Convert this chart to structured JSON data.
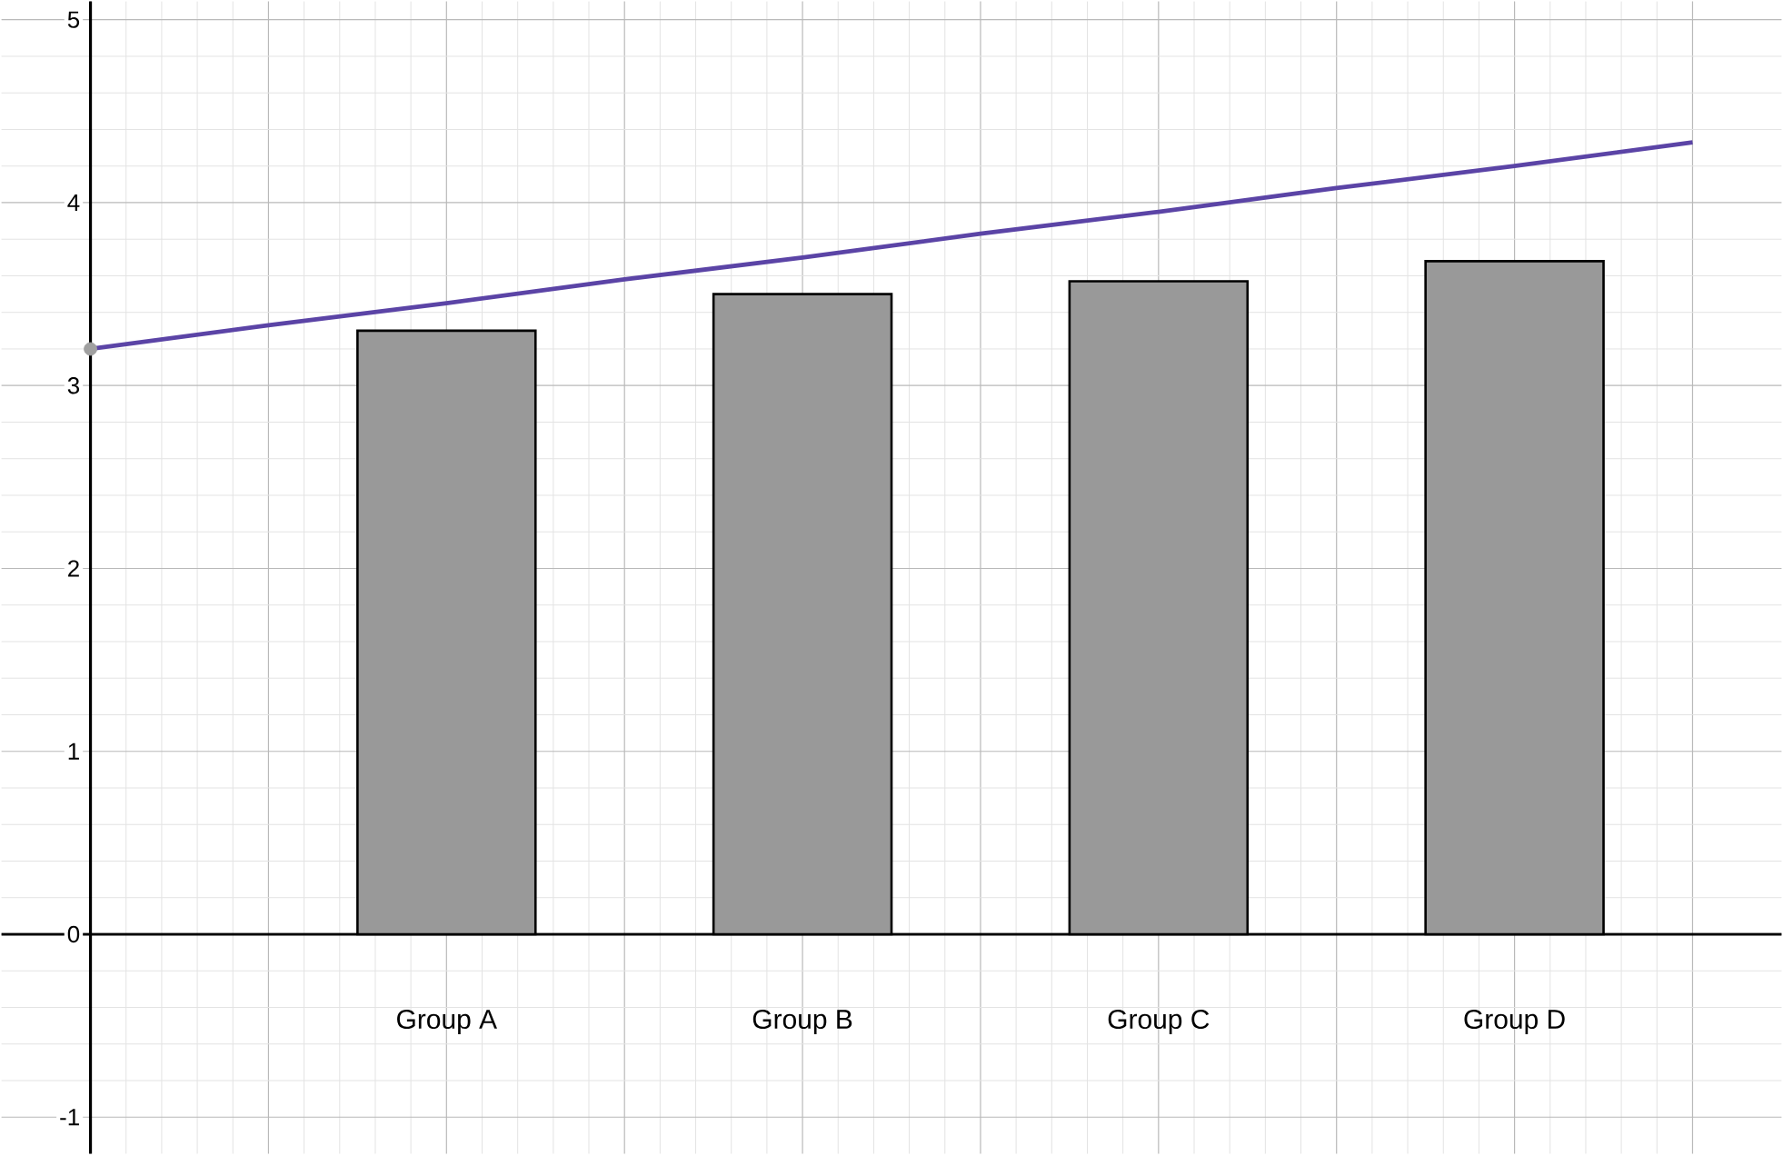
{
  "chart_data": {
    "type": "bar",
    "ylim": [
      -1.2,
      5.1
    ],
    "categories": [
      null,
      null,
      "Group A",
      null,
      "Group B",
      null,
      "Group C",
      null,
      "Group D",
      null
    ],
    "yticks": [
      -1,
      0,
      1,
      2,
      3,
      4,
      5
    ],
    "grid": true,
    "series": [
      {
        "color": "#999999",
        "values": [
          null,
          null,
          3.3,
          null,
          3.5,
          null,
          3.57,
          null,
          3.68,
          null
        ]
      },
      {
        "type": "line",
        "color": "#5b44a6",
        "marker": "none",
        "line_style": "solid",
        "values": [
          3.2,
          3.33,
          3.45,
          3.58,
          3.7,
          3.83,
          3.95,
          4.08,
          4.2,
          4.33
        ]
      },
      {
        "type": "scatter",
        "color": "#a0a0a0",
        "marker": "circle",
        "values": [
          3.2,
          null,
          null,
          null,
          null,
          null,
          null,
          null,
          null,
          null
        ]
      }
    ]
  }
}
